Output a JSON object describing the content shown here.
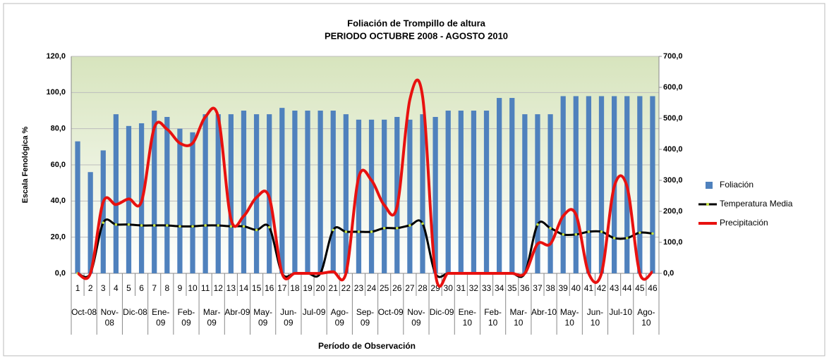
{
  "chart_data": {
    "type": "bar_line",
    "title": "Foliación de Trompillo de altura",
    "subtitle": "PERIODO OCTUBRE 2008 - AGOSTO 2010",
    "x_label": "Período de Observación",
    "y_label": "Escala Fenológica %",
    "categories": [
      1,
      2,
      3,
      4,
      5,
      6,
      7,
      8,
      9,
      10,
      11,
      12,
      13,
      14,
      15,
      16,
      17,
      18,
      19,
      20,
      21,
      22,
      23,
      24,
      25,
      26,
      27,
      28,
      29,
      30,
      31,
      32,
      33,
      34,
      35,
      36,
      37,
      38,
      39,
      40,
      41,
      42,
      43,
      44,
      45,
      46
    ],
    "category_groups": [
      "Oct-08",
      "Nov-08",
      "Dic-08",
      "Ene-09",
      "Feb-09",
      "Mar-09",
      "Abr-09",
      "May-09",
      "Jun-09",
      "Jul-09",
      "Ago-09",
      "Sep-09",
      "Oct-09",
      "Nov-09",
      "Dic-09",
      "Ene-10",
      "Feb-10",
      "Mar-10",
      "Abr-10",
      "May-10",
      "Jun-10",
      "Jul-10",
      "Ago-10"
    ],
    "series": [
      {
        "name": "Foliación",
        "type": "bar",
        "color": "#4f81bd",
        "values": [
          73,
          56,
          68,
          88,
          81.5,
          83,
          90,
          86.5,
          80,
          78,
          88,
          88,
          88,
          90,
          88,
          88,
          91.5,
          90,
          90,
          90,
          90,
          88,
          85,
          85,
          85,
          86.5,
          85,
          88,
          86.5,
          90,
          90,
          90,
          90,
          97,
          97,
          88,
          88,
          88,
          98,
          98,
          98,
          98,
          98,
          98,
          98,
          98
        ]
      },
      {
        "name": "Temperatura Media",
        "type": "line",
        "color": "#000000",
        "marker_color": "#c8e640",
        "values": [
          0,
          0,
          28,
          27,
          27,
          26.5,
          26.5,
          26.5,
          26,
          26,
          26.5,
          26.5,
          26,
          26,
          24,
          25.5,
          0,
          0,
          0,
          0,
          24,
          23,
          23,
          23,
          25,
          25,
          26.5,
          27.5,
          0,
          0,
          0,
          0,
          0,
          0,
          0,
          0,
          27,
          25,
          21.5,
          21.5,
          23,
          23,
          19.5,
          19.5,
          22.5,
          22
        ]
      },
      {
        "name": "Precipitación",
        "type": "line",
        "axis": "y2",
        "color": "#e8110f",
        "values": [
          0,
          0,
          230,
          222,
          240,
          232,
          470,
          465,
          420,
          420,
          505,
          505,
          175,
          185,
          245,
          245,
          0,
          0,
          0,
          0,
          5,
          0,
          310,
          300,
          220,
          215,
          560,
          570,
          0,
          0,
          0,
          0,
          0,
          0,
          0,
          0,
          95,
          95,
          185,
          190,
          0,
          0,
          280,
          280,
          0,
          5
        ]
      }
    ],
    "ylim": [
      0,
      120
    ],
    "yticks": [
      {
        "value": 0,
        "label": "0,0"
      },
      {
        "value": 20,
        "label": "20,0"
      },
      {
        "value": 40,
        "label": "40,0"
      },
      {
        "value": 60,
        "label": "60,0"
      },
      {
        "value": 80,
        "label": "80,0"
      },
      {
        "value": 100,
        "label": "100,0"
      },
      {
        "value": 120,
        "label": "120,0"
      }
    ],
    "y2lim": [
      0,
      700
    ],
    "y2ticks": [
      {
        "value": 0,
        "label": "0,0"
      },
      {
        "value": 100,
        "label": "100,0"
      },
      {
        "value": 200,
        "label": "200,0"
      },
      {
        "value": 300,
        "label": "300,0"
      },
      {
        "value": 400,
        "label": "400,0"
      },
      {
        "value": 500,
        "label": "500,0"
      },
      {
        "value": 600,
        "label": "600,0"
      },
      {
        "value": 700,
        "label": "700,0"
      }
    ],
    "grid": true
  }
}
